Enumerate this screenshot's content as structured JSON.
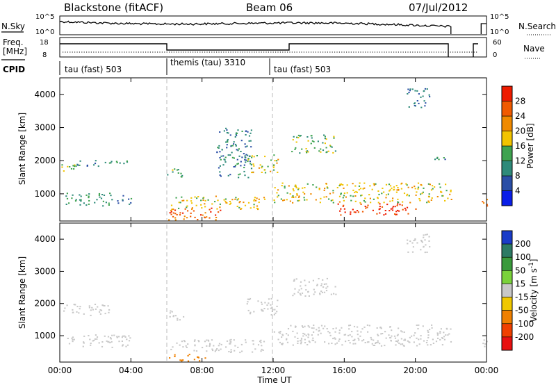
{
  "header": {
    "station": "Blackstone (fitACF)",
    "beam": "Beam 06",
    "date": "07/Jul/2012"
  },
  "noise_panel": {
    "left_label": "N.Sky",
    "right_label": "N.Search",
    "left_ticks": [
      "10^5",
      "10^0"
    ],
    "right_ticks": [
      "10^5",
      "10^0"
    ]
  },
  "freq_panel": {
    "left_label_1": "Freq.",
    "left_label_2": "[MHz]",
    "left_ticks": [
      "18",
      "8"
    ],
    "right_label": "Nave",
    "right_ticks": [
      "60",
      "0"
    ]
  },
  "cpid": {
    "label": "CPID",
    "segments": [
      {
        "name": "tau (fast) 503",
        "start": 0,
        "end": 6
      },
      {
        "name": "themis (tau) 3310",
        "start": 6,
        "end": 12
      },
      {
        "name": "tau (fast) 503",
        "start": 12,
        "end": 24
      }
    ]
  },
  "x_axis": {
    "label": "Time UT",
    "ticks": [
      "00:00",
      "04:00",
      "08:00",
      "12:00",
      "16:00",
      "20:00",
      "00:00"
    ],
    "range": [
      0,
      24
    ]
  },
  "y_axis": {
    "label": "Slant Range [km]",
    "ticks": [
      "1000",
      "2000",
      "3000",
      "4000"
    ],
    "range": [
      180,
      4500
    ]
  },
  "power_scale": {
    "title": "Power [dB]",
    "ticks": [
      "4",
      "8",
      "12",
      "16",
      "20",
      "24",
      "28"
    ],
    "colors": [
      "#0a1ee8",
      "#2a4ea6",
      "#2e8a7a",
      "#3fa350",
      "#f2c400",
      "#f08a00",
      "#f05a00",
      "#ee1c00"
    ]
  },
  "velocity_scale": {
    "title": "Velocity [m s",
    "title_sup": "-1",
    "title_end": "]",
    "ticks": [
      "200",
      "100",
      "50",
      "15",
      "-15",
      "-50",
      "-100",
      "-200"
    ],
    "colors": [
      "#1a3cc8",
      "#2c7a64",
      "#3a9a3c",
      "#7ad23a",
      "#c8c8c8",
      "#f0c800",
      "#f08000",
      "#f04000",
      "#e81010"
    ]
  },
  "chart_data": {
    "type": "heatmap",
    "title": "Blackstone (fitACF) Beam 06 07/Jul/2012",
    "xlabel": "Time UT",
    "ylabel": "Slant Range [km]",
    "xlim": [
      0,
      24
    ],
    "ylim": [
      180,
      4500
    ],
    "panels": [
      {
        "quantity": "Power [dB]",
        "clim": [
          0,
          32
        ],
        "regions": [
          {
            "t": [
              0.0,
              0.8
            ],
            "r": [
              1650,
              1950
            ],
            "value": 16
          },
          {
            "t": [
              0.7,
              3.8
            ],
            "r": [
              1850,
              2050
            ],
            "value": 10
          },
          {
            "t": [
              0.3,
              3.0
            ],
            "r": [
              650,
              1050
            ],
            "value": 12
          },
          {
            "t": [
              3.2,
              4.0
            ],
            "r": [
              700,
              1000
            ],
            "value": 9
          },
          {
            "t": [
              6.0,
              7.0
            ],
            "r": [
              1500,
              1800
            ],
            "value": 13
          },
          {
            "t": [
              6.2,
              11.5
            ],
            "r": [
              550,
              950
            ],
            "value": 18
          },
          {
            "t": [
              6.1,
              9.2
            ],
            "r": [
              230,
              600
            ],
            "value": 26
          },
          {
            "t": [
              8.8,
              10.8
            ],
            "r": [
              1500,
              3000
            ],
            "value": 9
          },
          {
            "t": [
              10.5,
              12.3
            ],
            "r": [
              1650,
              2200
            ],
            "value": 17
          },
          {
            "t": [
              12.0,
              22.0
            ],
            "r": [
              750,
              1350
            ],
            "value": 18
          },
          {
            "t": [
              15.5,
              20.0
            ],
            "r": [
              380,
              720
            ],
            "value": 29
          },
          {
            "t": [
              13.0,
              15.5
            ],
            "r": [
              2250,
              2800
            ],
            "value": 14
          },
          {
            "t": [
              19.5,
              20.8
            ],
            "r": [
              3600,
              4200
            ],
            "value": 8
          },
          {
            "t": [
              21.0,
              21.8
            ],
            "r": [
              1950,
              2150
            ],
            "value": 11
          },
          {
            "t": [
              23.7,
              24.0
            ],
            "r": [
              600,
              1100
            ],
            "value": 24
          }
        ]
      },
      {
        "quantity": "Velocity [m s-1]",
        "clim": [
          -200,
          200
        ],
        "regions": [
          {
            "t": [
              0.0,
              2.8
            ],
            "r": [
              1650,
              2000
            ],
            "value": 0
          },
          {
            "t": [
              0.3,
              4.0
            ],
            "r": [
              650,
              1050
            ],
            "value": 0
          },
          {
            "t": [
              6.0,
              7.0
            ],
            "r": [
              1500,
              1800
            ],
            "value": 0
          },
          {
            "t": [
              6.2,
              11.5
            ],
            "r": [
              500,
              900
            ],
            "value": 0
          },
          {
            "t": [
              6.1,
              8.2
            ],
            "r": [
              220,
              450
            ],
            "value": -80
          },
          {
            "t": [
              10.5,
              12.3
            ],
            "r": [
              1650,
              2200
            ],
            "value": 0
          },
          {
            "t": [
              12.0,
              22.0
            ],
            "r": [
              700,
              1350
            ],
            "value": 0
          },
          {
            "t": [
              13.0,
              15.5
            ],
            "r": [
              2250,
              2800
            ],
            "value": 0
          },
          {
            "t": [
              19.5,
              20.8
            ],
            "r": [
              3600,
              4200
            ],
            "value": 0
          },
          {
            "t": [
              23.7,
              24.0
            ],
            "r": [
              600,
              1100
            ],
            "value": 0
          }
        ]
      }
    ]
  }
}
